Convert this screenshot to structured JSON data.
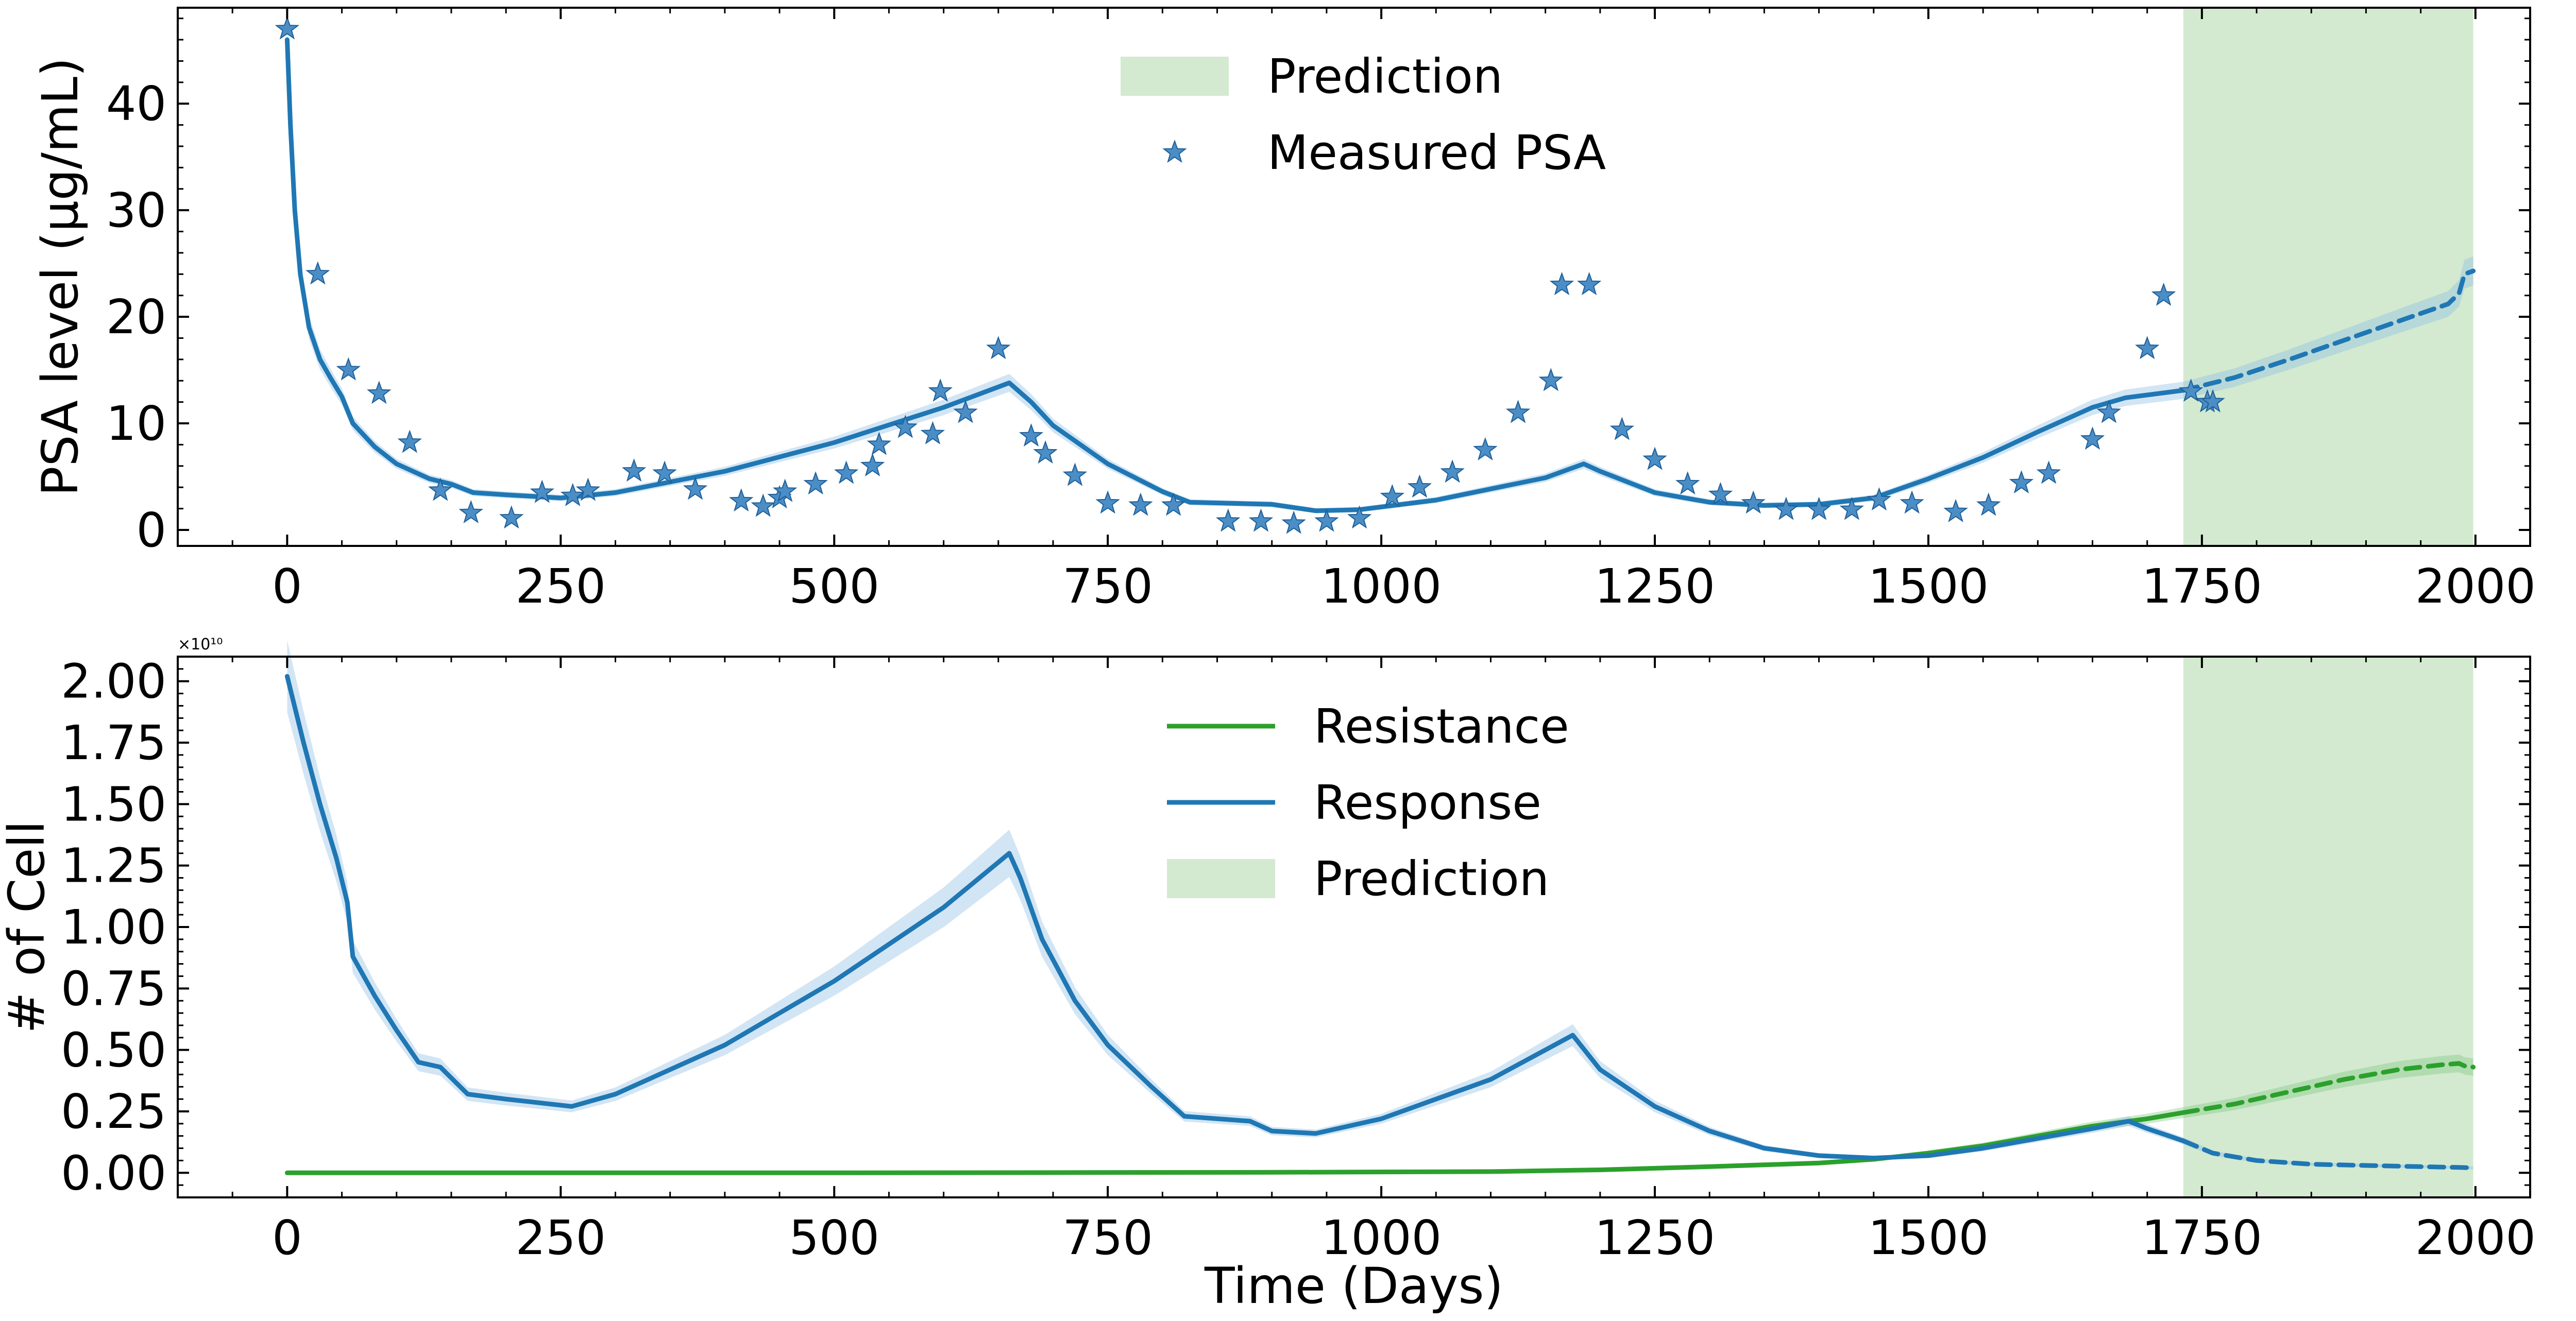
{
  "chart_data": [
    {
      "type": "line",
      "ylabel": "PSA level (μg/mL)",
      "xlabel": "",
      "xlim": [
        -100,
        2050
      ],
      "ylim": [
        -1.5,
        49
      ],
      "xticks": [
        0,
        250,
        500,
        750,
        1000,
        1250,
        1500,
        1750,
        2000
      ],
      "yticks": [
        0,
        10,
        20,
        30,
        40
      ],
      "grid": false,
      "legend_position": "top-center",
      "legend": [
        {
          "name": "Prediction",
          "kind": "patch",
          "color": "#b5dcb0"
        },
        {
          "name": "Measured PSA",
          "kind": "marker",
          "color": "#1f77b4"
        }
      ],
      "prediction_region": [
        1733,
        1998
      ],
      "series": [
        {
          "name": "Measured PSA",
          "kind": "scatter",
          "color": "#1f77b4",
          "points": [
            [
              0,
              47
            ],
            [
              28,
              24
            ],
            [
              56,
              15
            ],
            [
              84,
              12.8
            ],
            [
              112,
              8.2
            ],
            [
              140,
              3.7
            ],
            [
              168,
              1.6
            ],
            [
              205,
              1.1
            ],
            [
              233,
              3.5
            ],
            [
              261,
              3.2
            ],
            [
              275,
              3.7
            ],
            [
              317,
              5.5
            ],
            [
              345,
              5.3
            ],
            [
              373,
              3.8
            ],
            [
              415,
              2.7
            ],
            [
              435,
              2.2
            ],
            [
              450,
              3
            ],
            [
              455,
              3.6
            ],
            [
              483,
              4.3
            ],
            [
              511,
              5.3
            ],
            [
              535,
              6
            ],
            [
              541,
              8
            ],
            [
              565,
              9.6
            ],
            [
              590,
              9
            ],
            [
              597,
              13
            ],
            [
              620,
              11
            ],
            [
              650,
              17
            ],
            [
              680,
              8.8
            ],
            [
              693,
              7.2
            ],
            [
              720,
              5.1
            ],
            [
              750,
              2.5
            ],
            [
              780,
              2.3
            ],
            [
              810,
              2.3
            ],
            [
              860,
              0.8
            ],
            [
              890,
              0.8
            ],
            [
              920,
              0.6
            ],
            [
              950,
              0.8
            ],
            [
              980,
              1.1
            ],
            [
              1010,
              3.1
            ],
            [
              1035,
              4
            ],
            [
              1065,
              5.4
            ],
            [
              1095,
              7.5
            ],
            [
              1125,
              11
            ],
            [
              1155,
              14
            ],
            [
              1165,
              23
            ],
            [
              1190,
              23
            ],
            [
              1220,
              9.4
            ],
            [
              1250,
              6.6
            ],
            [
              1280,
              4.3
            ],
            [
              1310,
              3.3
            ],
            [
              1340,
              2.5
            ],
            [
              1370,
              1.9
            ],
            [
              1400,
              1.9
            ],
            [
              1430,
              1.9
            ],
            [
              1455,
              2.8
            ],
            [
              1485,
              2.5
            ],
            [
              1525,
              1.7
            ],
            [
              1555,
              2.3
            ],
            [
              1585,
              4.4
            ],
            [
              1610,
              5.3
            ],
            [
              1650,
              8.5
            ],
            [
              1665,
              11
            ],
            [
              1700,
              17
            ],
            [
              1715,
              22
            ],
            [
              1740,
              13
            ],
            [
              1755,
              12
            ],
            [
              1760,
              12
            ]
          ]
        },
        {
          "name": "",
          "kind": "line",
          "color": "#1f77b4",
          "points": [
            [
              0,
              46
            ],
            [
              3,
              38
            ],
            [
              7,
              30
            ],
            [
              12,
              24
            ],
            [
              20,
              19
            ],
            [
              30,
              16
            ],
            [
              40,
              14.2
            ],
            [
              50,
              12.5
            ],
            [
              60,
              10
            ],
            [
              80,
              7.8
            ],
            [
              100,
              6.2
            ],
            [
              130,
              4.8
            ],
            [
              150,
              4.3
            ],
            [
              170,
              3.5
            ],
            [
              200,
              3.3
            ],
            [
              250,
              3
            ],
            [
              300,
              3.5
            ],
            [
              400,
              5.5
            ],
            [
              500,
              8.2
            ],
            [
              600,
              11.5
            ],
            [
              660,
              13.8
            ],
            [
              680,
              12
            ],
            [
              700,
              9.8
            ],
            [
              750,
              6.2
            ],
            [
              800,
              3.6
            ],
            [
              825,
              2.6
            ],
            [
              900,
              2.4
            ],
            [
              940,
              1.8
            ],
            [
              980,
              1.9
            ],
            [
              1050,
              2.8
            ],
            [
              1150,
              4.9
            ],
            [
              1185,
              6.2
            ],
            [
              1200,
              5.5
            ],
            [
              1250,
              3.5
            ],
            [
              1300,
              2.6
            ],
            [
              1350,
              2.3
            ],
            [
              1400,
              2.4
            ],
            [
              1450,
              3
            ],
            [
              1500,
              4.8
            ],
            [
              1550,
              6.8
            ],
            [
              1600,
              9.2
            ],
            [
              1650,
              11.5
            ],
            [
              1680,
              12.4
            ],
            [
              1733,
              13.1
            ]
          ]
        },
        {
          "name": "",
          "kind": "line-dashed",
          "color": "#1f77b4",
          "points": [
            [
              1733,
              13.1
            ],
            [
              1780,
              14.3
            ],
            [
              1830,
              16
            ],
            [
              1880,
              17.8
            ],
            [
              1930,
              19.6
            ],
            [
              1975,
              21.2
            ],
            [
              1985,
              22.2
            ],
            [
              1990,
              24
            ],
            [
              1998,
              24.3
            ]
          ]
        }
      ]
    },
    {
      "type": "line",
      "ylabel": "# of Cell",
      "xlabel": "Time (Days)",
      "y_offset_label": "×10¹⁰",
      "xlim": [
        -100,
        2050
      ],
      "ylim": [
        -0.1,
        2.1
      ],
      "xticks": [
        0,
        250,
        500,
        750,
        1000,
        1250,
        1500,
        1750,
        2000
      ],
      "yticks": [
        0,
        0.25,
        0.5,
        0.75,
        1.0,
        1.25,
        1.5,
        1.75,
        2.0
      ],
      "ytick_labels": [
        "0.00",
        "0.25",
        "0.50",
        "0.75",
        "1.00",
        "1.25",
        "1.50",
        "1.75",
        "2.00"
      ],
      "grid": false,
      "legend_position": "top-center",
      "legend": [
        {
          "name": "Resistance",
          "kind": "line",
          "color": "#2ca02c"
        },
        {
          "name": "Response",
          "kind": "line",
          "color": "#1f77b4"
        },
        {
          "name": "Prediction",
          "kind": "patch",
          "color": "#b5dcb0"
        }
      ],
      "prediction_region": [
        1733,
        1998
      ],
      "series": [
        {
          "name": "Resistance",
          "kind": "line",
          "color": "#2ca02c",
          "points": [
            [
              0,
              0
            ],
            [
              500,
              0
            ],
            [
              900,
              0.002
            ],
            [
              1100,
              0.005
            ],
            [
              1200,
              0.012
            ],
            [
              1300,
              0.025
            ],
            [
              1400,
              0.04
            ],
            [
              1450,
              0.055
            ],
            [
              1500,
              0.08
            ],
            [
              1550,
              0.11
            ],
            [
              1600,
              0.15
            ],
            [
              1650,
              0.19
            ],
            [
              1700,
              0.22
            ],
            [
              1733,
              0.245
            ]
          ]
        },
        {
          "name": "Resistance",
          "kind": "line-dashed",
          "color": "#2ca02c",
          "points": [
            [
              1733,
              0.245
            ],
            [
              1780,
              0.28
            ],
            [
              1830,
              0.33
            ],
            [
              1880,
              0.38
            ],
            [
              1930,
              0.42
            ],
            [
              1970,
              0.44
            ],
            [
              1985,
              0.445
            ],
            [
              1990,
              0.435
            ],
            [
              1998,
              0.43
            ]
          ]
        },
        {
          "name": "Response",
          "kind": "line",
          "color": "#1f77b4",
          "points": [
            [
              0,
              2.02
            ],
            [
              15,
              1.75
            ],
            [
              30,
              1.5
            ],
            [
              45,
              1.28
            ],
            [
              55,
              1.1
            ],
            [
              60,
              0.88
            ],
            [
              80,
              0.72
            ],
            [
              100,
              0.58
            ],
            [
              120,
              0.45
            ],
            [
              140,
              0.43
            ],
            [
              165,
              0.32
            ],
            [
              200,
              0.3
            ],
            [
              260,
              0.27
            ],
            [
              300,
              0.32
            ],
            [
              400,
              0.52
            ],
            [
              500,
              0.78
            ],
            [
              600,
              1.08
            ],
            [
              660,
              1.3
            ],
            [
              670,
              1.2
            ],
            [
              690,
              0.95
            ],
            [
              720,
              0.7
            ],
            [
              750,
              0.52
            ],
            [
              790,
              0.35
            ],
            [
              820,
              0.23
            ],
            [
              880,
              0.21
            ],
            [
              900,
              0.17
            ],
            [
              940,
              0.16
            ],
            [
              1000,
              0.22
            ],
            [
              1100,
              0.38
            ],
            [
              1175,
              0.56
            ],
            [
              1200,
              0.42
            ],
            [
              1250,
              0.27
            ],
            [
              1300,
              0.17
            ],
            [
              1350,
              0.1
            ],
            [
              1400,
              0.07
            ],
            [
              1450,
              0.06
            ],
            [
              1500,
              0.07
            ],
            [
              1550,
              0.1
            ],
            [
              1600,
              0.14
            ],
            [
              1650,
              0.18
            ],
            [
              1683,
              0.21
            ],
            [
              1700,
              0.18
            ],
            [
              1720,
              0.15
            ],
            [
              1733,
              0.13
            ]
          ]
        },
        {
          "name": "Response",
          "kind": "line-dashed",
          "color": "#1f77b4",
          "points": [
            [
              1733,
              0.13
            ],
            [
              1760,
              0.08
            ],
            [
              1800,
              0.05
            ],
            [
              1850,
              0.035
            ],
            [
              1900,
              0.03
            ],
            [
              1950,
              0.025
            ],
            [
              1985,
              0.022
            ],
            [
              1998,
              0.02
            ]
          ]
        }
      ]
    }
  ]
}
